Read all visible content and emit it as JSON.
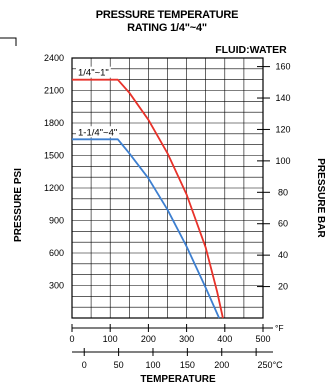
{
  "chart_data": {
    "type": "line",
    "title": "PRESSURE TEMPERATURE",
    "subtitle": "RATING 1/4\"~4\"",
    "annotation": "FLUID:WATER",
    "xlabel": "TEMPERATURE",
    "ylabel": "PRESSURE PSI",
    "y2label": "PRESSURE BAR",
    "xlim": [
      0,
      500
    ],
    "ylim": [
      0,
      2400
    ],
    "x_unit": "°F",
    "x2_unit": "250°C",
    "x_ticks": [
      "0",
      "100",
      "200",
      "300",
      "400",
      "500"
    ],
    "x2_ticks": [
      "0",
      "50",
      "100",
      "150",
      "200"
    ],
    "y_ticks": [
      "300",
      "600",
      "900",
      "1200",
      "1500",
      "1800",
      "2100",
      "2400"
    ],
    "y2_ticks": [
      "20",
      "40",
      "60",
      "80",
      "100",
      "120",
      "140",
      "160"
    ],
    "grid": true,
    "series": [
      {
        "name": "1/4\"~1\"",
        "color": "#e8322a",
        "x": [
          0,
          120,
          150,
          200,
          250,
          300,
          350,
          380,
          395
        ],
        "y": [
          2200,
          2200,
          2080,
          1830,
          1520,
          1140,
          650,
          240,
          0
        ]
      },
      {
        "name": "1-1/4\"~4\"",
        "color": "#3d7fd0",
        "x": [
          0,
          120,
          150,
          200,
          250,
          300,
          350,
          385
        ],
        "y": [
          1650,
          1650,
          1520,
          1290,
          1000,
          660,
          280,
          0
        ]
      }
    ]
  }
}
